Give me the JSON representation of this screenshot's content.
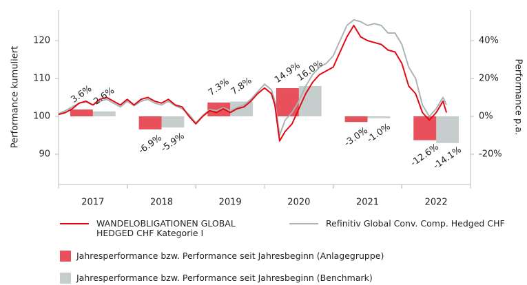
{
  "chart_data": {
    "type": "line",
    "ylabel": "Performance kumuliert",
    "y2label": "Performance p.a.",
    "xlim": [
      2017,
      2023
    ],
    "xticks": [
      {
        "value": 2017.5,
        "label": "2017"
      },
      {
        "value": 2018.5,
        "label": "2018"
      },
      {
        "value": 2019.5,
        "label": "2019"
      },
      {
        "value": 2020.5,
        "label": "2020"
      },
      {
        "value": 2021.5,
        "label": "2021"
      },
      {
        "value": 2022.5,
        "label": "2022"
      }
    ],
    "ylim": [
      82,
      128
    ],
    "yticks": [
      90,
      100,
      110,
      120
    ],
    "y2lim": [
      -36,
      56
    ],
    "y2ticks": [
      {
        "value": -20,
        "label": "-20%"
      },
      {
        "value": 0,
        "label": "0%"
      },
      {
        "value": 20,
        "label": "20%"
      },
      {
        "value": 40,
        "label": "40%"
      }
    ],
    "x": [
      2017.0,
      2017.1,
      2017.2,
      2017.3,
      2017.4,
      2017.5,
      2017.6,
      2017.7,
      2017.8,
      2017.9,
      2018.0,
      2018.1,
      2018.2,
      2018.3,
      2018.4,
      2018.5,
      2018.6,
      2018.7,
      2018.8,
      2018.9,
      2019.0,
      2019.1,
      2019.2,
      2019.3,
      2019.4,
      2019.5,
      2019.6,
      2019.7,
      2019.8,
      2019.9,
      2020.0,
      2020.1,
      2020.15,
      2020.22,
      2020.3,
      2020.4,
      2020.5,
      2020.6,
      2020.7,
      2020.8,
      2020.9,
      2021.0,
      2021.1,
      2021.2,
      2021.3,
      2021.4,
      2021.5,
      2021.6,
      2021.7,
      2021.8,
      2021.9,
      2022.0,
      2022.1,
      2022.2,
      2022.3,
      2022.4,
      2022.5,
      2022.6,
      2022.65
    ],
    "series": [
      {
        "name": "WANDELOBLIGATIONEN GLOBAL HEDGED CHF Kategorie I",
        "type": "line",
        "color": "#e30613",
        "values": [
          100.5,
          101,
          102,
          103.5,
          104,
          103,
          104.5,
          105,
          104,
          103,
          104.5,
          103,
          104.5,
          105,
          104,
          103.5,
          104.5,
          103,
          102.5,
          100,
          98,
          100,
          101.5,
          101,
          102,
          101,
          102,
          102.5,
          104,
          106,
          107.5,
          106,
          103,
          93.5,
          96,
          98,
          102,
          106,
          109,
          111,
          112,
          113,
          117,
          121,
          124,
          121,
          120,
          119.5,
          119,
          117.5,
          117,
          114,
          108,
          106,
          101,
          99,
          101,
          104,
          101
        ]
      },
      {
        "name": "Refinitiv Global Conv. Comp. Hedged CHF",
        "type": "line",
        "color": "#a9b4b4",
        "values": [
          100.7,
          101.5,
          102.5,
          103.5,
          103.8,
          103,
          104,
          104.5,
          103.5,
          102.5,
          104,
          102.8,
          104,
          104.5,
          103.5,
          103,
          104,
          102.8,
          102,
          100.5,
          98.3,
          100.2,
          101.8,
          101.5,
          102.3,
          101.5,
          102.3,
          103,
          104.5,
          106.5,
          108.5,
          107,
          104,
          95,
          99,
          101,
          104,
          108,
          111,
          113,
          114,
          116,
          120,
          124,
          125.5,
          125,
          124,
          124.5,
          124,
          122,
          122,
          119,
          113,
          110,
          103,
          100,
          102,
          105,
          103
        ]
      },
      {
        "name": "Jahresperformance bzw. Performance seit Jahresbeginn (Anlagegruppe)",
        "type": "bar",
        "axis": "y2",
        "color": "#e8505b",
        "x": [
          2017.5,
          2018.5,
          2019.5,
          2020.5,
          2021.5,
          2022.5
        ],
        "values": [
          3.6,
          -6.9,
          7.3,
          14.9,
          -3.0,
          -12.6
        ],
        "value_labels": [
          "3.6%",
          "-6.9%",
          "7.3%",
          "14.9%",
          "-3.0%",
          "-12.6%"
        ]
      },
      {
        "name": "Jahresperformance bzw. Performance seit Jahresbeginn (Benchmark)",
        "type": "bar",
        "axis": "y2",
        "color": "#c5cecd",
        "x": [
          2017.5,
          2018.5,
          2019.5,
          2020.5,
          2021.5,
          2022.5
        ],
        "values": [
          2.6,
          -5.9,
          7.8,
          16.0,
          -1.0,
          -14.1
        ],
        "value_labels": [
          "2.6%",
          "-5.9%",
          "7.8%",
          "16.0%",
          "-1.0%",
          "-14.1%"
        ]
      }
    ]
  }
}
